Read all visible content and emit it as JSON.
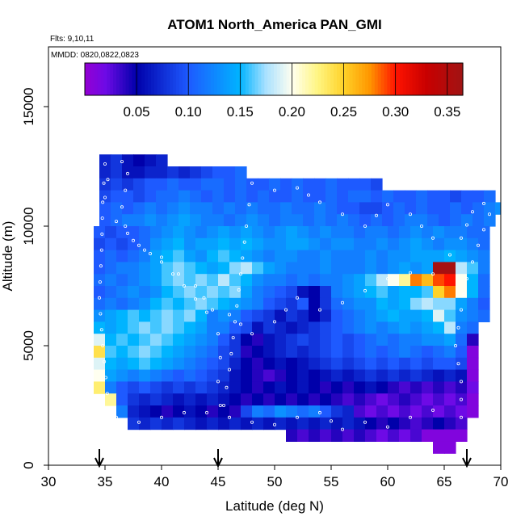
{
  "chart_data": {
    "type": "heatmap",
    "title": "ATOM1 North_America PAN_GMI",
    "annotations": [
      "Flts: 9,10,11",
      "MMDD: 0820,0822,0823"
    ],
    "xlabel": "Latitude (deg N)",
    "ylabel": "Altitude (m)",
    "xlim": [
      30,
      70
    ],
    "ylim": [
      0,
      17500
    ],
    "xticks": [
      30,
      35,
      40,
      45,
      50,
      55,
      60,
      65,
      70
    ],
    "yticks": [
      0,
      5000,
      10000,
      15000
    ],
    "colorbar": {
      "range": [
        0.0,
        0.365
      ],
      "ticks": [
        0.05,
        0.1,
        0.15,
        0.2,
        0.25,
        0.3,
        0.35
      ],
      "tick_labels": [
        "0.05",
        "0.10",
        "0.15",
        "0.20",
        "0.25",
        "0.30",
        "0.35"
      ]
    },
    "grid": false,
    "markers_lat": [
      34.5,
      45,
      67
    ],
    "cell": {
      "dlat": 1.0,
      "dalt": 500
    },
    "rows": [
      {
        "alt": 12500,
        "lat0": 34.5,
        "values": [
          0.07,
          0.08,
          0.06,
          0.05,
          0.06,
          0.07
        ]
      },
      {
        "alt": 12000,
        "lat0": 34.5,
        "values": [
          0.07,
          0.08,
          0.06,
          0.06,
          0.07,
          0.07,
          0.08,
          0.07,
          0.08,
          0.09,
          0.1,
          0.1,
          0.11
        ]
      },
      {
        "alt": 11500,
        "lat0": 34.5,
        "values": [
          0.08,
          0.09,
          0.08,
          0.09,
          0.1,
          0.1,
          0.11,
          0.1,
          0.1,
          0.11,
          0.11,
          0.1,
          0.11,
          0.1,
          0.1,
          0.11,
          0.1,
          0.11,
          0.1,
          0.1,
          0.11,
          0.1,
          0.1,
          0.1,
          0.09
        ]
      },
      {
        "alt": 11000,
        "lat0": 34.5,
        "values": [
          0.09,
          0.1,
          0.1,
          0.09,
          0.1,
          0.11,
          0.11,
          0.12,
          0.11,
          0.1,
          0.11,
          0.1,
          0.11,
          0.1,
          0.11,
          0.1,
          0.1,
          0.11,
          0.1,
          0.1,
          0.11,
          0.1,
          0.11,
          0.11,
          0.1,
          0.11,
          0.1,
          0.1,
          0.11,
          0.1,
          0.1,
          0.09,
          0.1,
          0.1,
          0.11
        ]
      },
      {
        "alt": 10500,
        "lat0": 34.5,
        "values": [
          0.1,
          0.11,
          0.1,
          0.11,
          0.12,
          0.11,
          0.12,
          0.13,
          0.12,
          0.12,
          0.11,
          0.12,
          0.11,
          0.12,
          0.11,
          0.11,
          0.12,
          0.11,
          0.11,
          0.12,
          0.11,
          0.1,
          0.1,
          0.09,
          0.09,
          0.1,
          0.11,
          0.1,
          0.11,
          0.1,
          0.1,
          0.11,
          0.1,
          0.11,
          0.12,
          0.13
        ]
      },
      {
        "alt": 10000,
        "lat0": 34.5,
        "values": [
          0.1,
          0.11,
          0.12,
          0.12,
          0.13,
          0.12,
          0.13,
          0.14,
          0.13,
          0.12,
          0.12,
          0.11,
          0.12,
          0.13,
          0.12,
          0.11,
          0.12,
          0.12,
          0.11,
          0.12,
          0.11,
          0.12,
          0.11,
          0.1,
          0.11,
          0.1,
          0.11,
          0.12,
          0.12,
          0.11,
          0.1,
          0.11,
          0.12,
          0.11,
          0.12
        ]
      },
      {
        "alt": 9500,
        "lat0": 34.0,
        "values": [
          0.1,
          0.09,
          0.1,
          0.1,
          0.11,
          0.12,
          0.13,
          0.14,
          0.13,
          0.12,
          0.13,
          0.14,
          0.13,
          0.14,
          0.13,
          0.12,
          0.13,
          0.14,
          0.13,
          0.12,
          0.13,
          0.12,
          0.12,
          0.11,
          0.12,
          0.12,
          0.11,
          0.12,
          0.13,
          0.12,
          0.13,
          0.12,
          0.12,
          0.11,
          0.11
        ]
      },
      {
        "alt": 9000,
        "lat0": 34.0,
        "values": [
          0.09,
          0.1,
          0.09,
          0.1,
          0.11,
          0.13,
          0.14,
          0.15,
          0.13,
          0.14,
          0.14,
          0.15,
          0.14,
          0.15,
          0.14,
          0.13,
          0.13,
          0.14,
          0.14,
          0.13,
          0.12,
          0.13,
          0.13,
          0.12,
          0.12,
          0.13,
          0.12,
          0.13,
          0.14,
          0.13,
          0.12,
          0.13,
          0.13,
          0.12,
          0.11
        ]
      },
      {
        "alt": 8500,
        "lat0": 34.0,
        "values": [
          0.1,
          0.11,
          0.1,
          0.11,
          0.12,
          0.14,
          0.15,
          0.16,
          0.14,
          0.13,
          0.15,
          0.16,
          0.15,
          0.14,
          0.13,
          0.12,
          0.13,
          0.13,
          0.12,
          0.12,
          0.13,
          0.12,
          0.12,
          0.12,
          0.13,
          0.12,
          0.13,
          0.13,
          0.14,
          0.14,
          0.14,
          0.15,
          0.14,
          0.13,
          0.12
        ]
      },
      {
        "alt": 8000,
        "lat0": 34.0,
        "values": [
          0.1,
          0.11,
          0.12,
          0.12,
          0.13,
          0.14,
          0.16,
          0.17,
          0.16,
          0.15,
          0.14,
          0.15,
          0.17,
          0.18,
          0.16,
          0.14,
          0.13,
          0.12,
          0.12,
          0.12,
          0.13,
          0.12,
          0.12,
          0.12,
          0.13,
          0.12,
          0.13,
          0.14,
          0.13,
          0.14,
          0.36,
          0.36,
          0.18,
          0.16,
          0.12
        ]
      },
      {
        "alt": 7500,
        "lat0": 34.0,
        "values": [
          0.11,
          0.12,
          0.11,
          0.12,
          0.13,
          0.14,
          0.16,
          0.17,
          0.16,
          0.17,
          0.16,
          0.18,
          0.16,
          0.15,
          0.13,
          0.12,
          0.12,
          0.11,
          0.12,
          0.11,
          0.12,
          0.12,
          0.13,
          0.14,
          0.16,
          0.18,
          0.2,
          0.22,
          0.28,
          0.26,
          0.29,
          0.3,
          0.2,
          0.15,
          0.11
        ]
      },
      {
        "alt": 7000,
        "lat0": 34.0,
        "values": [
          0.1,
          0.11,
          0.12,
          0.13,
          0.12,
          0.13,
          0.15,
          0.16,
          0.17,
          0.16,
          0.17,
          0.16,
          0.17,
          0.14,
          0.12,
          0.11,
          0.1,
          0.09,
          0.06,
          0.05,
          0.08,
          0.12,
          0.13,
          0.14,
          0.15,
          0.16,
          0.14,
          0.15,
          0.15,
          0.16,
          0.25,
          0.28,
          0.2,
          0.15,
          0.11
        ]
      },
      {
        "alt": 6500,
        "lat0": 34.0,
        "values": [
          0.11,
          0.12,
          0.11,
          0.12,
          0.13,
          0.15,
          0.16,
          0.15,
          0.16,
          0.17,
          0.16,
          0.15,
          0.14,
          0.13,
          0.12,
          0.1,
          0.09,
          0.08,
          0.1,
          0.05,
          0.08,
          0.11,
          0.12,
          0.13,
          0.13,
          0.15,
          0.14,
          0.15,
          0.17,
          0.18,
          0.17,
          0.17,
          0.14,
          0.12,
          0.1
        ]
      },
      {
        "alt": 6000,
        "lat0": 34.0,
        "values": [
          0.13,
          0.14,
          0.15,
          0.16,
          0.15,
          0.16,
          0.17,
          0.16,
          0.17,
          0.15,
          0.12,
          0.13,
          0.12,
          0.1,
          0.09,
          0.08,
          0.06,
          0.08,
          0.07,
          0.05,
          0.07,
          0.1,
          0.11,
          0.12,
          0.13,
          0.14,
          0.15,
          0.14,
          0.14,
          0.15,
          0.19,
          0.16,
          0.13,
          0.12,
          0.11
        ]
      },
      {
        "alt": 5500,
        "lat0": 34.0,
        "values": [
          0.15,
          0.14,
          0.15,
          0.16,
          0.17,
          0.16,
          0.17,
          0.16,
          0.15,
          0.14,
          0.12,
          0.12,
          0.1,
          0.09,
          0.06,
          0.08,
          0.07,
          0.06,
          0.07,
          0.08,
          0.09,
          0.1,
          0.11,
          0.12,
          0.13,
          0.12,
          0.13,
          0.14,
          0.13,
          0.14,
          0.15,
          0.18,
          0.12,
          0.11
        ]
      },
      {
        "alt": 5000,
        "lat0": 34.0,
        "values": [
          0.19,
          0.15,
          0.16,
          0.15,
          0.16,
          0.17,
          0.16,
          0.15,
          0.14,
          0.13,
          0.12,
          0.1,
          0.08,
          0.05,
          0.04,
          0.06,
          0.07,
          0.08,
          0.09,
          0.08,
          0.09,
          0.1,
          0.09,
          0.1,
          0.11,
          0.12,
          0.11,
          0.12,
          0.12,
          0.13,
          0.13,
          0.14,
          0.11,
          0.04
        ]
      },
      {
        "alt": 4500,
        "lat0": 34.0,
        "values": [
          0.24,
          0.16,
          0.15,
          0.16,
          0.17,
          0.16,
          0.15,
          0.14,
          0.13,
          0.12,
          0.11,
          0.09,
          0.08,
          0.04,
          0.05,
          0.06,
          0.07,
          0.08,
          0.07,
          0.08,
          0.09,
          0.1,
          0.09,
          0.1,
          0.11,
          0.1,
          0.11,
          0.12,
          0.11,
          0.1,
          0.11,
          0.12,
          0.1,
          0.01
        ]
      },
      {
        "alt": 4000,
        "lat0": 34.0,
        "values": [
          0.19,
          0.15,
          0.14,
          0.15,
          0.16,
          0.15,
          0.14,
          0.13,
          0.12,
          0.11,
          0.1,
          0.09,
          0.07,
          0.05,
          0.04,
          0.05,
          0.06,
          0.05,
          0.06,
          0.07,
          0.08,
          0.09,
          0.08,
          0.09,
          0.1,
          0.09,
          0.1,
          0.09,
          0.1,
          0.09,
          0.1,
          0.1,
          0.09,
          0.01
        ]
      },
      {
        "alt": 3500,
        "lat0": 34.0,
        "values": [
          0.2,
          0.14,
          0.13,
          0.12,
          0.13,
          0.12,
          0.11,
          0.1,
          0.11,
          0.1,
          0.09,
          0.08,
          0.06,
          0.05,
          0.04,
          0.03,
          0.04,
          0.05,
          0.06,
          0.05,
          0.06,
          0.07,
          0.06,
          0.07,
          0.08,
          0.07,
          0.08,
          0.07,
          0.08,
          0.07,
          0.06,
          0.07,
          0.06,
          0.01
        ]
      },
      {
        "alt": 3000,
        "lat0": 34.0,
        "values": [
          0.23,
          0.12,
          0.1,
          0.09,
          0.1,
          0.09,
          0.08,
          0.09,
          0.08,
          0.09,
          0.08,
          0.07,
          0.06,
          0.05,
          0.04,
          0.05,
          0.06,
          0.05,
          0.06,
          0.05,
          0.04,
          0.05,
          0.04,
          0.05,
          0.06,
          0.05,
          0.04,
          0.03,
          0.04,
          0.03,
          0.04,
          0.03,
          0.04,
          0.02
        ]
      },
      {
        "alt": 2500,
        "lat0": 35.0,
        "values": [
          0.22,
          0.1,
          0.08,
          0.07,
          0.08,
          0.07,
          0.06,
          0.07,
          0.06,
          0.07,
          0.06,
          0.05,
          0.04,
          0.05,
          0.04,
          0.05,
          0.04,
          0.05,
          0.04,
          0.05,
          0.04,
          0.03,
          0.04,
          0.03,
          0.02,
          0.03,
          0.04,
          0.03,
          0.02,
          0.03,
          0.02,
          0.03,
          0.01
        ]
      },
      {
        "alt": 2000,
        "lat0": 36.0,
        "values": [
          0.12,
          0.07,
          0.06,
          0.05,
          0.04,
          0.05,
          0.06,
          0.05,
          0.04,
          0.05,
          0.04,
          0.09,
          0.12,
          0.11,
          0.13,
          0.12,
          0.11,
          0.12,
          0.1,
          0.08,
          0.07,
          0.03,
          0.02,
          0.03,
          0.02,
          0.03,
          0.02,
          0.03,
          0.02,
          0.03,
          0.02,
          0.01
        ]
      },
      {
        "alt": 1500,
        "lat0": 37.0,
        "values": [
          0.08,
          0.07,
          0.08,
          0.07,
          0.08,
          0.07,
          0.06,
          0.07,
          0.06,
          0.07,
          0.06,
          0.07,
          0.06,
          0.07,
          0.06,
          0.07,
          0.06,
          0.07,
          0.06,
          0.07,
          0.06,
          0.05,
          0.04,
          0.05,
          0.04,
          0.03,
          0.04,
          0.05,
          0.04,
          0.03
        ]
      },
      {
        "alt": 1000,
        "lat0": 51.0,
        "values": [
          0.04,
          0.03,
          0.04,
          0.03,
          0.04,
          0.03,
          0.04,
          0.03,
          0.02,
          0.03,
          0.02,
          0.03,
          0.01,
          0.01,
          0.01,
          0.01
        ]
      },
      {
        "alt": 500,
        "lat0": 64.0,
        "values": [
          0.01,
          0.01
        ]
      }
    ],
    "tracks": [
      [
        [
          36.5,
          12700
        ],
        [
          37.0,
          12200
        ],
        [
          36.8,
          11500
        ],
        [
          36.5,
          10800
        ],
        [
          36.8,
          10000
        ],
        [
          37.5,
          9400
        ],
        [
          38.5,
          9000
        ],
        [
          40.0,
          8700
        ],
        [
          41.5,
          8000
        ],
        [
          43.0,
          7500
        ],
        [
          44.5,
          6500
        ],
        [
          45.0,
          5500
        ],
        [
          45.2,
          4500
        ],
        [
          45.0,
          3500
        ],
        [
          45.2,
          2500
        ],
        [
          45.5,
          1700
        ]
      ],
      [
        [
          45.5,
          2500
        ],
        [
          46.0,
          4000
        ],
        [
          46.5,
          6000
        ],
        [
          47.0,
          8000
        ],
        [
          47.5,
          10000
        ],
        [
          48.0,
          11800
        ],
        [
          50.0,
          11500
        ],
        [
          52.0,
          11600
        ],
        [
          54.0,
          11000
        ],
        [
          56.0,
          10500
        ],
        [
          58.0,
          10000
        ],
        [
          60.0,
          10900
        ],
        [
          62.0,
          10500
        ],
        [
          64.0,
          9500
        ],
        [
          65.5,
          8800
        ],
        [
          66.5,
          9500
        ],
        [
          67.5,
          10600
        ],
        [
          69.5,
          11300
        ]
      ],
      [
        [
          69.0,
          10500
        ],
        [
          68.0,
          9200
        ],
        [
          67.0,
          7800
        ],
        [
          66.5,
          6500
        ],
        [
          66.0,
          5000
        ],
        [
          66.5,
          3500
        ],
        [
          66.5,
          2000
        ],
        [
          65.5,
          1000
        ]
      ],
      [
        [
          64.0,
          8000
        ],
        [
          62.0,
          8050
        ],
        [
          60.0,
          7800
        ],
        [
          58.0,
          7300
        ],
        [
          56.0,
          6800
        ],
        [
          54.0,
          6500
        ],
        [
          52.0,
          7000
        ],
        [
          50.0,
          6000
        ],
        [
          48.0,
          5500
        ],
        [
          46.0,
          6300
        ],
        [
          44.0,
          6400
        ],
        [
          42.0,
          7500
        ],
        [
          40.0,
          8500
        ],
        [
          38.0,
          9200
        ],
        [
          36.0,
          10200
        ],
        [
          35.0,
          11200
        ],
        [
          35.5,
          12700
        ]
      ],
      [
        [
          35.0,
          12600
        ],
        [
          34.8,
          11000
        ],
        [
          34.7,
          9000
        ],
        [
          34.5,
          7000
        ],
        [
          34.8,
          5000
        ],
        [
          35.2,
          3000
        ],
        [
          36.0,
          2000
        ],
        [
          38.0,
          1800
        ],
        [
          40.0,
          2000
        ],
        [
          42.0,
          2200
        ],
        [
          44.0,
          2200
        ],
        [
          46.0,
          2000
        ],
        [
          48.0,
          1800
        ],
        [
          50.0,
          1700
        ],
        [
          52.0,
          2000
        ],
        [
          54.0,
          2200
        ],
        [
          56.0,
          1500
        ],
        [
          58.0,
          1800
        ],
        [
          60.0,
          1600
        ],
        [
          62.0,
          2000
        ],
        [
          64.0,
          2300
        ],
        [
          65.5,
          2600
        ]
      ]
    ]
  }
}
